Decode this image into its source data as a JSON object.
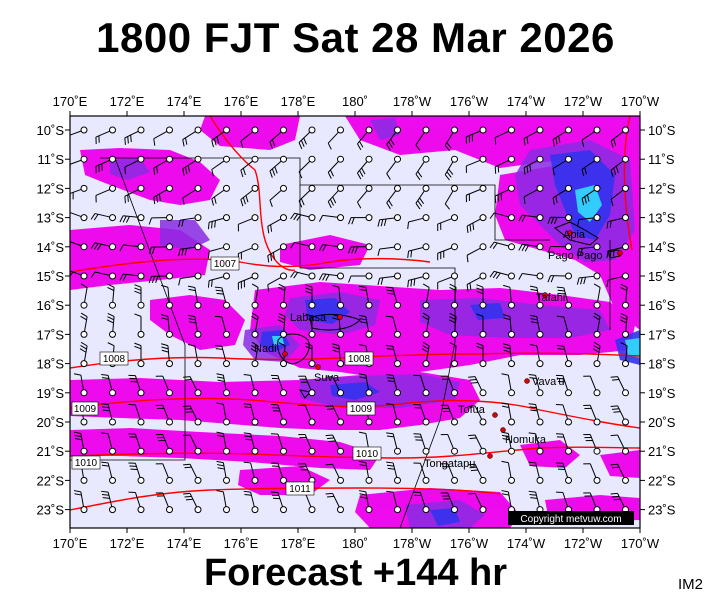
{
  "title": "1800 FJT Sat 28 Mar 2026",
  "footer": "Forecast +144 hr",
  "product_code": "IM2",
  "copyright": "Copyright metvuw.com",
  "colors": {
    "ocean": "#e8e8ff",
    "rain_light": "#ee00ee",
    "rain_medium": "#8a2be2",
    "rain_heavy": "#3333ee",
    "rain_extreme": "#33ccff",
    "isobar": "#ff0000",
    "coast": "#000000"
  },
  "lon_ticks": [
    "170˚E",
    "172˚E",
    "174˚E",
    "176˚E",
    "178˚E",
    "180˚",
    "178˚W",
    "176˚W",
    "174˚W",
    "172˚W",
    "170˚W"
  ],
  "lat_ticks": [
    "10˚S",
    "11˚S",
    "12˚S",
    "13˚S",
    "14˚S",
    "15˚S",
    "16˚S",
    "17˚S",
    "18˚S",
    "19˚S",
    "20˚S",
    "21˚S",
    "22˚S",
    "23˚S"
  ],
  "isobar_labels": [
    "1007",
    "1008",
    "1008",
    "1009",
    "1009",
    "1010",
    "1010",
    "1011"
  ],
  "places": [
    "Apia",
    "Pago Pago",
    "Tafahi",
    "Labasa",
    "Nadi",
    "Suva",
    "Vava'u",
    "Tofua",
    "Nomuka",
    "Tongatapu"
  ]
}
